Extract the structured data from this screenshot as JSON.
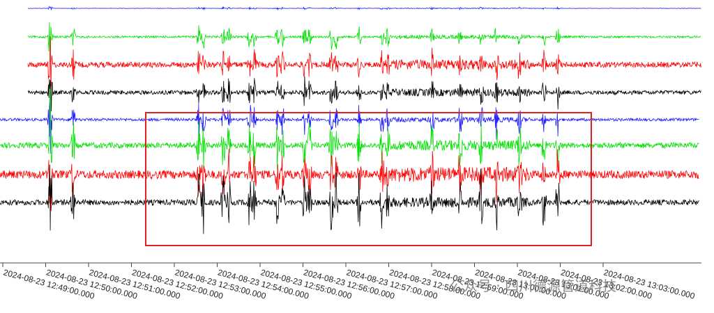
{
  "x_axis": {
    "ticks": [
      "2024-08-23 12:49:00.000",
      "2024-08-23 12:50:00.000",
      "2024-08-23 12:51:00.000",
      "2024-08-23 12:52:00.000",
      "2024-08-23 12:53:00.000",
      "2024-08-23 12:54:00.000",
      "2024-08-23 12:55:00.000",
      "2024-08-23 12:56:00.000",
      "2024-08-23 12:57:00.000",
      "2024-08-23 12:58:00.000",
      "2024-08-23 12:59:00.000",
      "2024-08-23 13:00:00.000",
      "2024-08-23 13:01:00.000",
      "2024-08-23 13:02:00.000",
      "2024-08-23 13:03:00.000"
    ]
  },
  "watermark": "公众号 · 四川德源管道科技"
}
